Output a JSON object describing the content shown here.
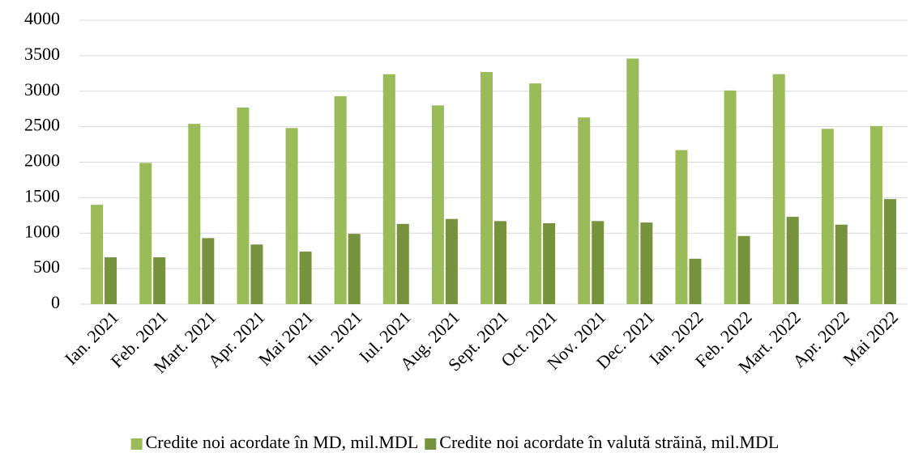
{
  "chart_data": {
    "type": "bar",
    "categories": [
      "Ian. 2021",
      "Feb. 2021",
      "Mart. 2021",
      "Apr. 2021",
      "Mai 2021",
      "Iun. 2021",
      "Iul. 2021",
      "Aug. 2021",
      "Sept. 2021",
      "Oct. 2021",
      "Nov. 2021",
      "Dec. 2021",
      "Ian. 2022",
      "Feb. 2022",
      "Mart. 2022",
      "Apr. 2022",
      "Mai 2022"
    ],
    "series": [
      {
        "name": "Credite noi acordate în MD, mil.MDL",
        "color": "#9bbb59",
        "values": [
          1400,
          1990,
          2540,
          2770,
          2480,
          2930,
          3240,
          2800,
          3270,
          3110,
          2630,
          3460,
          2170,
          3010,
          3240,
          2470,
          2510
        ]
      },
      {
        "name": "Credite noi acordate în valută străină, mil.MDL",
        "color": "#76923c",
        "values": [
          660,
          660,
          930,
          840,
          740,
          990,
          1130,
          1200,
          1170,
          1140,
          1170,
          1150,
          640,
          960,
          1230,
          1120,
          1480
        ]
      }
    ],
    "ylim": [
      0,
      4000
    ],
    "yticks": [
      0,
      500,
      1000,
      1500,
      2000,
      2500,
      3000,
      3500,
      4000
    ],
    "grid": true,
    "legend": "bottom"
  }
}
